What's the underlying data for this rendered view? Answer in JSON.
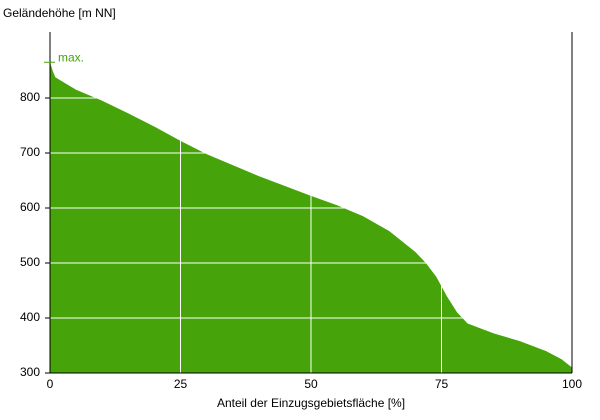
{
  "chart_data": {
    "type": "area",
    "y_label": "Geländehöhe [m NN]",
    "x_label": "Anteil der Einzugsgebietsfläche [%]",
    "annotation": {
      "text": "max.",
      "value": 865
    },
    "color": "#46a40a",
    "x": [
      0,
      0.5,
      1,
      2,
      5,
      10,
      15,
      20,
      25,
      30,
      35,
      40,
      45,
      50,
      55,
      60,
      65,
      70,
      72,
      74,
      76,
      78,
      80,
      85,
      90,
      95,
      98,
      100
    ],
    "values": [
      865,
      850,
      838,
      832,
      815,
      795,
      772,
      748,
      722,
      698,
      678,
      658,
      640,
      622,
      605,
      585,
      558,
      520,
      500,
      475,
      440,
      410,
      390,
      372,
      358,
      340,
      325,
      310
    ],
    "xlim": [
      0,
      100
    ],
    "xticks": [
      0,
      25,
      50,
      75,
      100
    ],
    "ylim": [
      300,
      920
    ],
    "yticks": [
      300,
      400,
      500,
      600,
      700,
      800
    ],
    "grid": true
  }
}
